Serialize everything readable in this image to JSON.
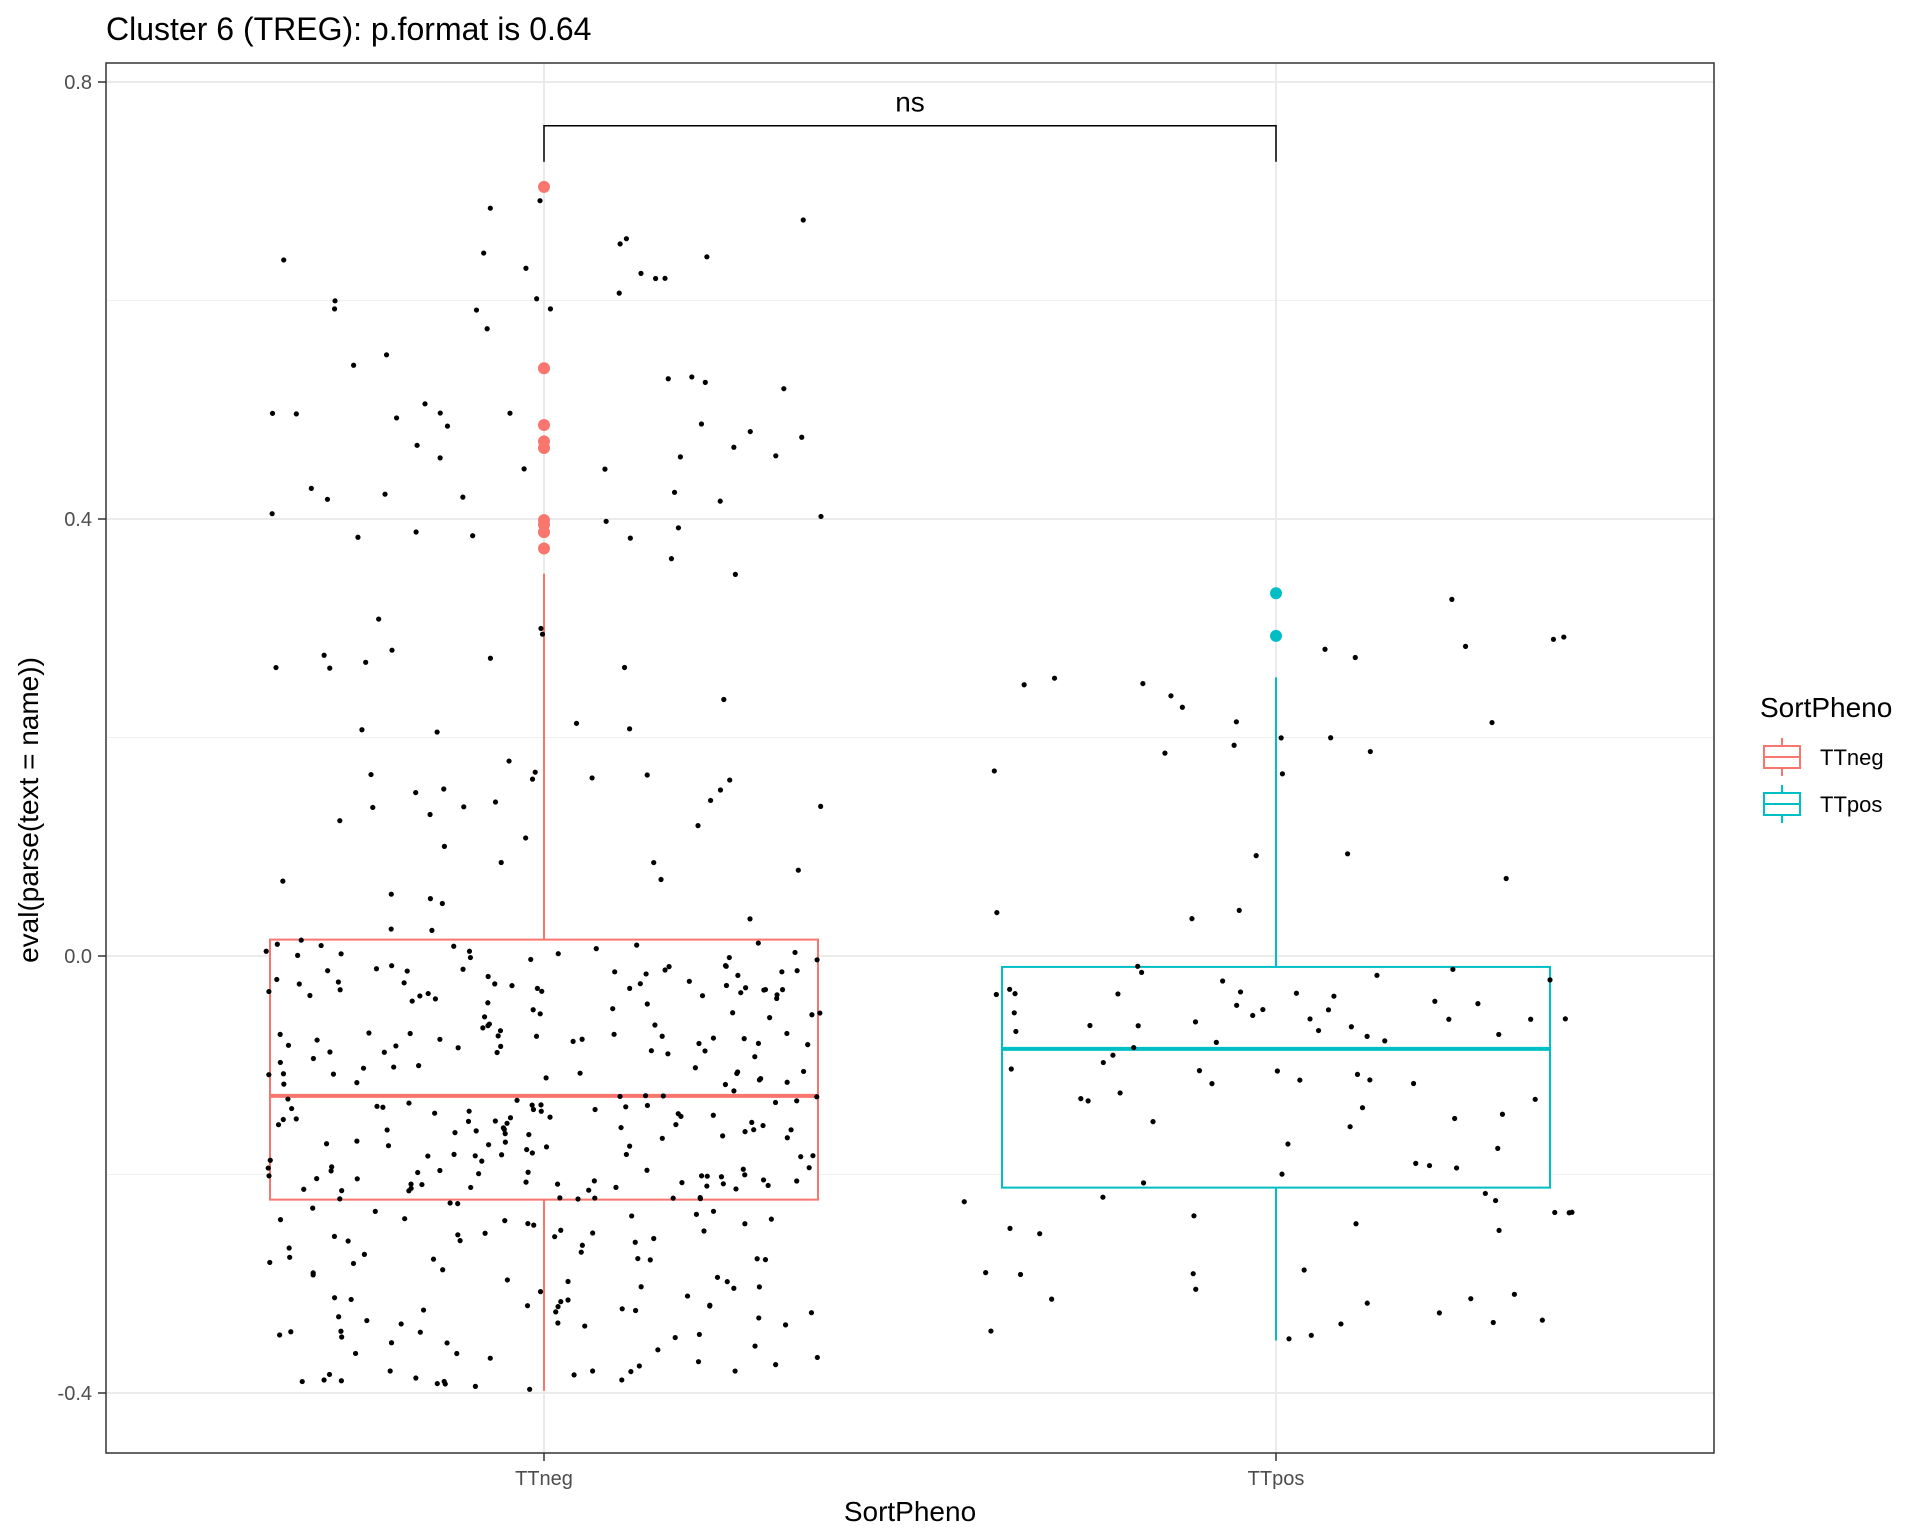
{
  "chart_data": {
    "type": "boxplot",
    "title": "Cluster 6 (TREG): p.format is 0.64",
    "xlabel": "SortPheno",
    "ylabel": "eval(parse(text = name))",
    "ylim": [
      -0.455,
      0.81
    ],
    "yticks": [
      -0.4,
      0.0,
      0.4,
      0.8
    ],
    "ytick_labels": [
      "-0.4",
      "0.0",
      "0.4",
      "0.8"
    ],
    "categories": [
      "TTneg",
      "TTpos"
    ],
    "grid": true,
    "legend": {
      "title": "SortPheno",
      "position": "right",
      "entries": [
        {
          "label": "TTneg",
          "color": "#F8766D"
        },
        {
          "label": "TTpos",
          "color": "#00BFC4"
        }
      ]
    },
    "significance": {
      "label": "ns",
      "from": "TTneg",
      "to": "TTpos",
      "y": 0.76
    },
    "boxes": [
      {
        "category": "TTneg",
        "color": "#F8766D",
        "min": -0.398,
        "q1": -0.223,
        "median": -0.128,
        "q3": 0.015,
        "max": 0.35,
        "outliers": [
          0.704,
          0.538,
          0.486,
          0.471,
          0.465,
          0.399,
          0.395,
          0.388,
          0.373
        ]
      },
      {
        "category": "TTpos",
        "color": "#00BFC4",
        "min": -0.352,
        "q1": -0.212,
        "median": -0.085,
        "q3": -0.01,
        "max": 0.255,
        "outliers": [
          0.332,
          0.293
        ]
      }
    ],
    "points": {
      "TTneg": {
        "count": 440,
        "spread": 0.32
      },
      "TTpos": {
        "count": 115,
        "spread": 0.36
      }
    }
  }
}
